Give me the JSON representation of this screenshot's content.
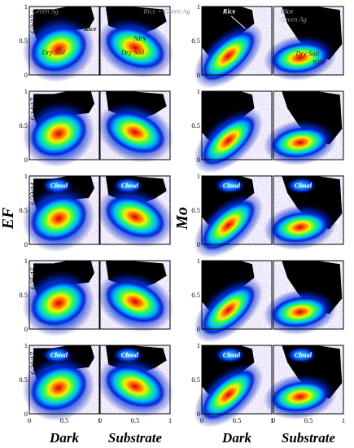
{
  "chart_data": [
    {
      "type": "heatmap",
      "ylabel": "EF",
      "columns": [
        "Dark",
        "Substrate"
      ],
      "rows": [
        "6/3/13",
        "6/14/17",
        "6/22/14",
        "6/25/15",
        "6/30/17"
      ],
      "xlim": [
        0,
        1
      ],
      "ylim": [
        0,
        1
      ],
      "xticks": [
        "0",
        "0.5",
        "1"
      ],
      "yticks": [
        "0",
        "0.5",
        "1"
      ],
      "annotations": [
        {
          "row": 0,
          "col": 0,
          "text": "Green Ag"
        },
        {
          "row": 0,
          "col": 0,
          "text": "Rice"
        },
        {
          "row": 0,
          "col": 0,
          "text": "Dry Soil"
        },
        {
          "row": 0,
          "col": 1,
          "text": "Rice + Green Ag"
        },
        {
          "row": 0,
          "col": 1,
          "text": "NPV"
        },
        {
          "row": 0,
          "col": 1,
          "text": "Dry Soil"
        },
        {
          "row": 2,
          "col": 0,
          "text": "Cloud"
        },
        {
          "row": 2,
          "col": 1,
          "text": "Cloud"
        },
        {
          "row": 4,
          "col": 0,
          "text": "Cloud"
        },
        {
          "row": 4,
          "col": 1,
          "text": "Cloud"
        }
      ]
    },
    {
      "type": "heatmap",
      "ylabel": "Mo",
      "columns": [
        "Dark",
        "Substrate"
      ],
      "rows": [
        "6/3/13",
        "6/14/17",
        "6/22/14",
        "6/25/15",
        "6/30/17"
      ],
      "xlim": [
        0,
        1
      ],
      "ylim": [
        0,
        1
      ],
      "xticks": [
        "0",
        "0.5",
        "1"
      ],
      "yticks": [
        "0",
        "0.5",
        "1"
      ],
      "annotations": [
        {
          "row": 0,
          "col": 0,
          "text": "Rice"
        },
        {
          "row": 0,
          "col": 1,
          "text": "Rice"
        },
        {
          "row": 0,
          "col": 1,
          "text": "Green Ag"
        },
        {
          "row": 0,
          "col": 1,
          "text": "Dry Soil"
        },
        {
          "row": 0,
          "col": 1,
          "text": "NPV"
        },
        {
          "row": 2,
          "col": 0,
          "text": "Cloud"
        },
        {
          "row": 2,
          "col": 1,
          "text": "Cloud"
        },
        {
          "row": 4,
          "col": 0,
          "text": "Cloud"
        },
        {
          "row": 4,
          "col": 1,
          "text": "Cloud"
        }
      ]
    }
  ]
}
